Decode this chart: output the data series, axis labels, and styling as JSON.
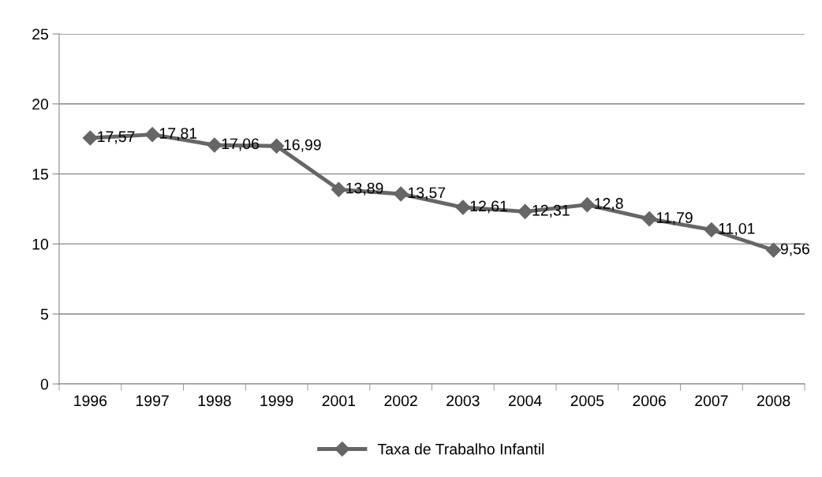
{
  "chart_data": {
    "type": "line",
    "categories": [
      "1996",
      "1997",
      "1998",
      "1999",
      "2001",
      "2002",
      "2003",
      "2004",
      "2005",
      "2006",
      "2007",
      "2008"
    ],
    "series": [
      {
        "name": "Taxa de Trabalho Infantil",
        "color": "#666666",
        "values": [
          17.57,
          17.81,
          17.06,
          16.99,
          13.89,
          13.57,
          12.61,
          12.31,
          12.8,
          11.79,
          11.01,
          9.56
        ],
        "value_labels": [
          "17,57",
          "17,81",
          "17,06",
          "16,99",
          "13,89",
          "13,57",
          "12,61",
          "12,31",
          "12,8",
          "11,79",
          "11,01",
          "9,56"
        ]
      }
    ],
    "ylim": [
      0,
      25
    ],
    "yticks": [
      0,
      5,
      10,
      15,
      20,
      25
    ],
    "grid": "y",
    "legend": "bottom",
    "marker": "diamond",
    "line_style": "solid"
  }
}
